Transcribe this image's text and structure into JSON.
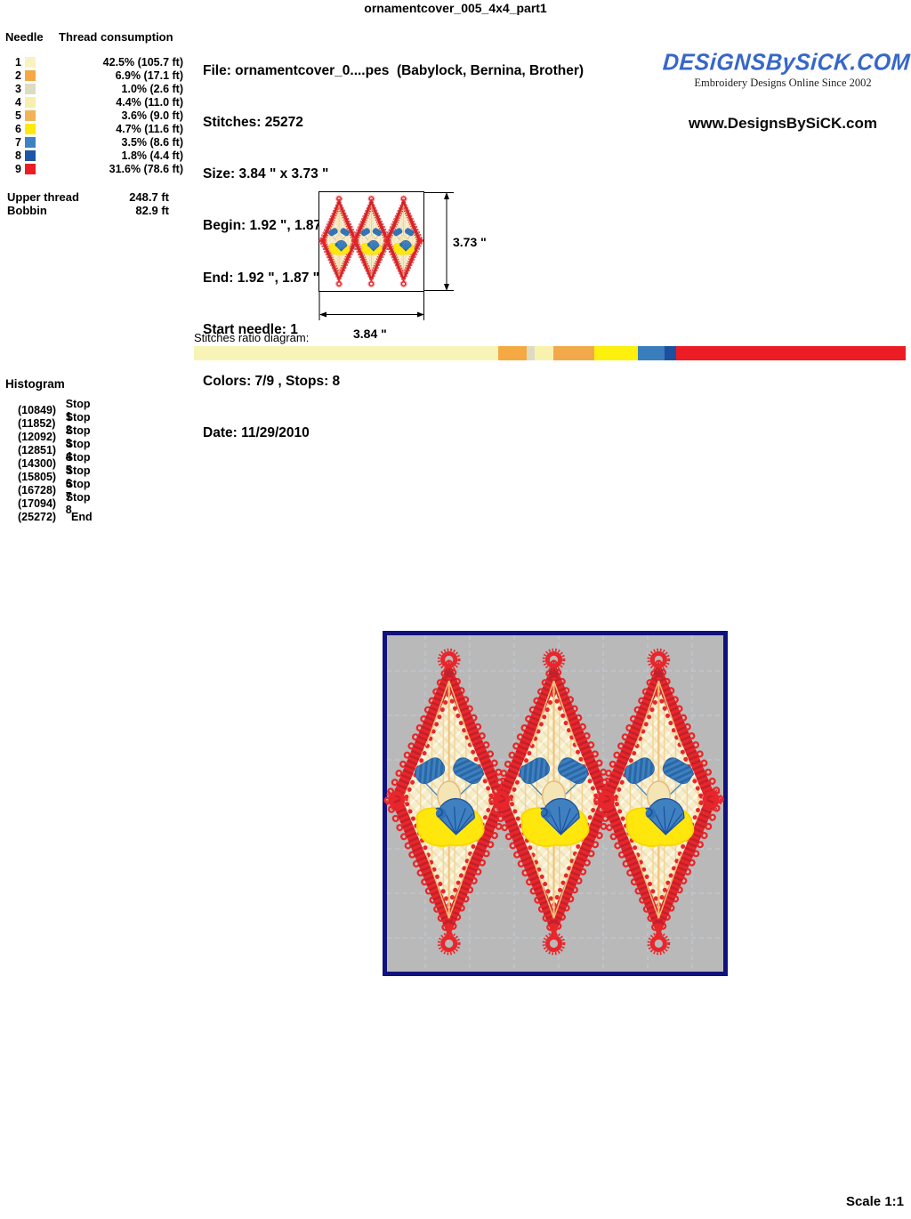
{
  "page_title": "ornamentcover_005_4x4_part1",
  "needle_table": {
    "header_needle": "Needle",
    "header_consumption": "Thread consumption",
    "rows": [
      {
        "n": "1",
        "color": "#f8f3c0",
        "pct": "42.5% (105.7 ft)"
      },
      {
        "n": "2",
        "color": "#f4a943",
        "pct": "6.9% (17.1 ft)"
      },
      {
        "n": "3",
        "color": "#dedbc3",
        "pct": "1.0% (2.6 ft)"
      },
      {
        "n": "4",
        "color": "#f6efae",
        "pct": "4.4% (11.0 ft)"
      },
      {
        "n": "5",
        "color": "#f2b356",
        "pct": "3.6% (9.0 ft)"
      },
      {
        "n": "6",
        "color": "#ffe90a",
        "pct": "4.7% (11.6 ft)"
      },
      {
        "n": "7",
        "color": "#3e82c4",
        "pct": "3.5% (8.6 ft)"
      },
      {
        "n": "8",
        "color": "#1f55a7",
        "pct": "1.8% (4.4 ft)"
      },
      {
        "n": "9",
        "color": "#ec1c24",
        "pct": "31.6% (78.6 ft)"
      }
    ],
    "upper_thread_label": "Upper thread",
    "upper_thread_value": "248.7 ft",
    "bobbin_label": "Bobbin",
    "bobbin_value": "82.9 ft"
  },
  "file_info": {
    "lines": [
      "File: ornamentcover_0....pes  (Babylock, Bernina, Brother)",
      "Stitches: 25272",
      "Size: 3.84 \" x 3.73 \"",
      "Begin: 1.92 \", 1.87 \"",
      "End: 1.92 \", 1.87 \"",
      "Start needle: 1",
      "Colors: 7/9 , Stops: 8",
      "Date: 11/29/2010"
    ]
  },
  "branding": {
    "logo_text": "DESiGNSBySiCK.COM",
    "tagline": "Embroidery Designs Online Since 2002",
    "website": "www.DesignsBySiCK.com",
    "logo_color": "#3767c9"
  },
  "dimensions": {
    "width_label": "3.84 \"",
    "height_label": "3.73 \""
  },
  "ratio_diagram": {
    "label": "Stitches ratio diagram:",
    "segments": [
      {
        "color": "#f8f4b8",
        "width_pct": 42.8
      },
      {
        "color": "#f4a943",
        "width_pct": 3.9
      },
      {
        "color": "#dedbc3",
        "width_pct": 1.2
      },
      {
        "color": "#f8f2ae",
        "width_pct": 2.6
      },
      {
        "color": "#f2a94c",
        "width_pct": 5.8
      },
      {
        "color": "#fdf00c",
        "width_pct": 6.1
      },
      {
        "color": "#3a7dbd",
        "width_pct": 3.7
      },
      {
        "color": "#1c4f9e",
        "width_pct": 1.7
      },
      {
        "color": "#ec1c24",
        "width_pct": 32.2
      }
    ]
  },
  "histogram": {
    "title": "Histogram",
    "entries": [
      {
        "count": "(10849)",
        "label": "Stop 1"
      },
      {
        "count": "(11852)",
        "label": "Stop 2"
      },
      {
        "count": "(12092)",
        "label": "Stop 3"
      },
      {
        "count": "(12851)",
        "label": "Stop 4"
      },
      {
        "count": "(14300)",
        "label": "Stop 5"
      },
      {
        "count": "(15805)",
        "label": "Stop 6"
      },
      {
        "count": "(16728)",
        "label": "Stop 7"
      },
      {
        "count": "(17094)",
        "label": "Stop 8"
      },
      {
        "count": "(25272)",
        "label": "End"
      }
    ]
  },
  "design_colors": {
    "thread_red": "#e8262b",
    "canvas_gray": "#b9b9b9",
    "border_navy": "#10127e",
    "lattice_cream": "#f6edca",
    "accent_yellow": "#ffe70d",
    "accent_blue": "#3f81c0"
  },
  "scale_label": "Scale 1:1"
}
